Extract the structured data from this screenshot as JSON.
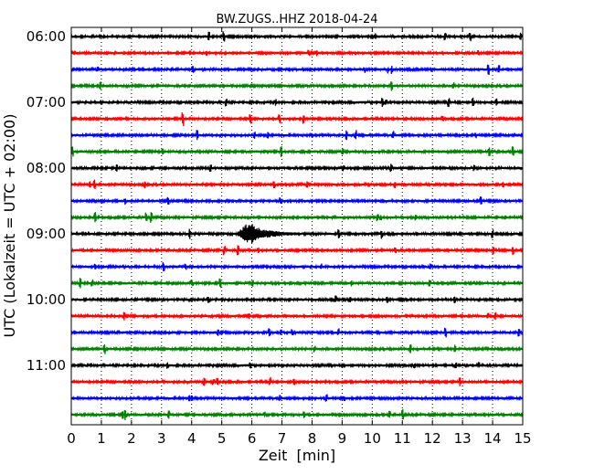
{
  "chart_data": {
    "type": "line",
    "chart_kind": "helicorder / seismogram drum plot",
    "title": "BW.ZUGS..HHZ 2018-04-24",
    "xlabel": "Zeit  [min]",
    "ylabel": "UTC (Lokalzeit = UTC + 02:00)",
    "xlim": [
      0,
      15
    ],
    "x_ticks": [
      "0",
      "1",
      "2",
      "3",
      "4",
      "5",
      "6",
      "7",
      "8",
      "9",
      "10",
      "11",
      "12",
      "13",
      "14",
      "15"
    ],
    "y_ticks": [
      {
        "label": "06:00",
        "trace": 0
      },
      {
        "label": "07:00",
        "trace": 4
      },
      {
        "label": "08:00",
        "trace": 8
      },
      {
        "label": "09:00",
        "trace": 12
      },
      {
        "label": "10:00",
        "trace": 16
      },
      {
        "label": "11:00",
        "trace": 20
      }
    ],
    "minutes_per_trace": 15,
    "trace_count": 24,
    "trace_colors": [
      "#000000",
      "#ff0000",
      "#0000ff",
      "#008000"
    ],
    "grid": "vertical dotted lines each minute",
    "events": [
      {
        "trace": 12,
        "start_min": 5.5,
        "peak_min": 5.9,
        "end_min": 7.5,
        "description": "largest burst of amplitude"
      }
    ]
  }
}
